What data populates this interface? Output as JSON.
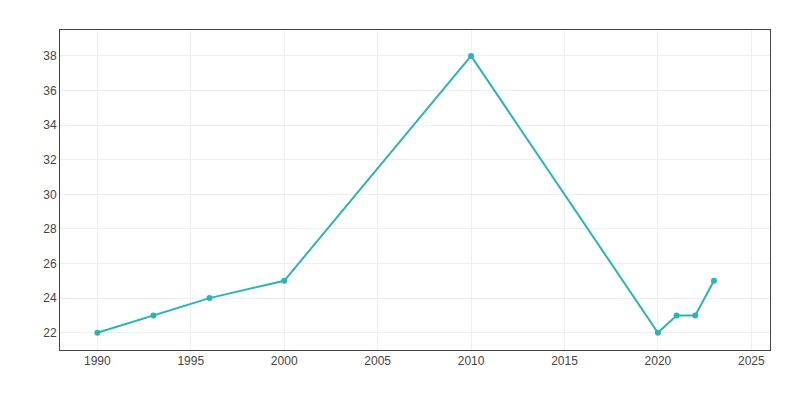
{
  "chart_data": {
    "type": "line",
    "x": [
      1990,
      1993,
      1996,
      2000,
      2010,
      2020,
      2021,
      2022,
      2023
    ],
    "values": [
      22,
      23,
      24,
      25,
      38,
      22,
      23,
      23,
      25
    ],
    "color": "#2ab5b5",
    "marker": "circle",
    "line_style": "solid",
    "xlim": [
      1988,
      2026
    ],
    "ylim": [
      21,
      39.5
    ],
    "xticks": [
      1990,
      1995,
      2000,
      2005,
      2010,
      2015,
      2020,
      2025
    ],
    "yticks": [
      22,
      24,
      26,
      28,
      30,
      32,
      34,
      36,
      38
    ],
    "grid": true
  }
}
